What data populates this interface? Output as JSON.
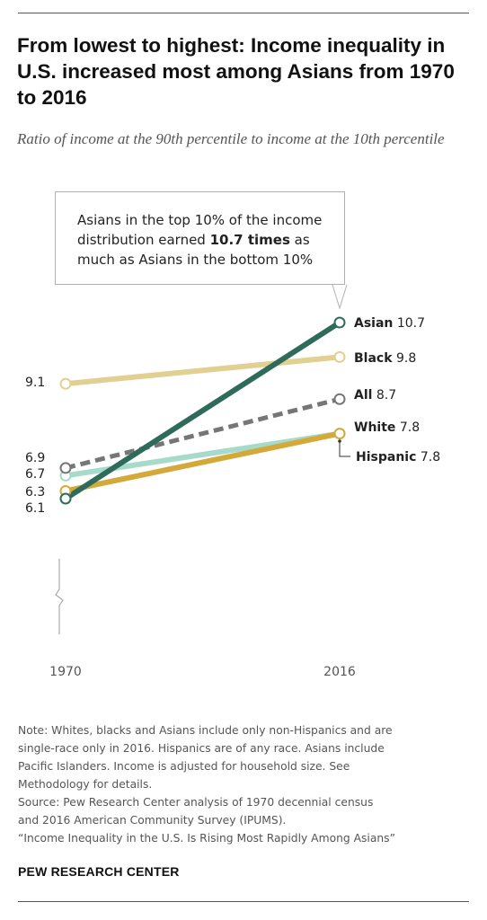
{
  "header": {
    "title": "From lowest to highest: Income inequality in U.S. increased most among Asians from 1970 to 2016",
    "subtitle": "Ratio of income at the 90th percentile to income at the 10th percentile"
  },
  "callout": {
    "text_before": "Asians in the top 10% of the income distribution earned ",
    "text_bold": "10.7 times",
    "text_after": " as much as Asians in the bottom 10%"
  },
  "chart_data": {
    "type": "line",
    "x": [
      "1970",
      "2016"
    ],
    "ylim": [
      5.0,
      11.4
    ],
    "grid": false,
    "series": [
      {
        "name": "Black",
        "values": [
          9.1,
          9.8
        ],
        "color": "#e2cf92",
        "dashed": false,
        "start_label": "9.1",
        "end_label": "9.8"
      },
      {
        "name": "Hispanic",
        "values": [
          6.7,
          7.8
        ],
        "color": "#a6dacb",
        "dashed": false,
        "start_label": "6.7",
        "end_label": "7.8"
      },
      {
        "name": "White",
        "values": [
          6.3,
          7.8
        ],
        "color": "#d4a93a",
        "dashed": false,
        "start_label": "6.3",
        "end_label": "7.8"
      },
      {
        "name": "All",
        "values": [
          6.9,
          8.7
        ],
        "color": "#767676",
        "dashed": true,
        "start_label": "6.9",
        "end_label": "8.7"
      },
      {
        "name": "Asian",
        "values": [
          6.1,
          10.7
        ],
        "color": "#2e6b5a",
        "dashed": false,
        "start_label": "6.1",
        "end_label": "10.7"
      }
    ]
  },
  "note": {
    "lines": [
      "Note: Whites, blacks and Asians include only non-Hispanics and are",
      "single-race only in 2016. Hispanics are of any race. Asians include",
      "Pacific Islanders. Income is adjusted for household size. See",
      "Methodology for details.",
      "Source: Pew Research Center analysis of 1970 decennial census",
      "and 2016 American Community Survey (IPUMS).",
      "“Income Inequality in the U.S. Is Rising Most Rapidly Among Asians”"
    ]
  },
  "brand": {
    "logo_text": "PEW RESEARCH CENTER"
  }
}
